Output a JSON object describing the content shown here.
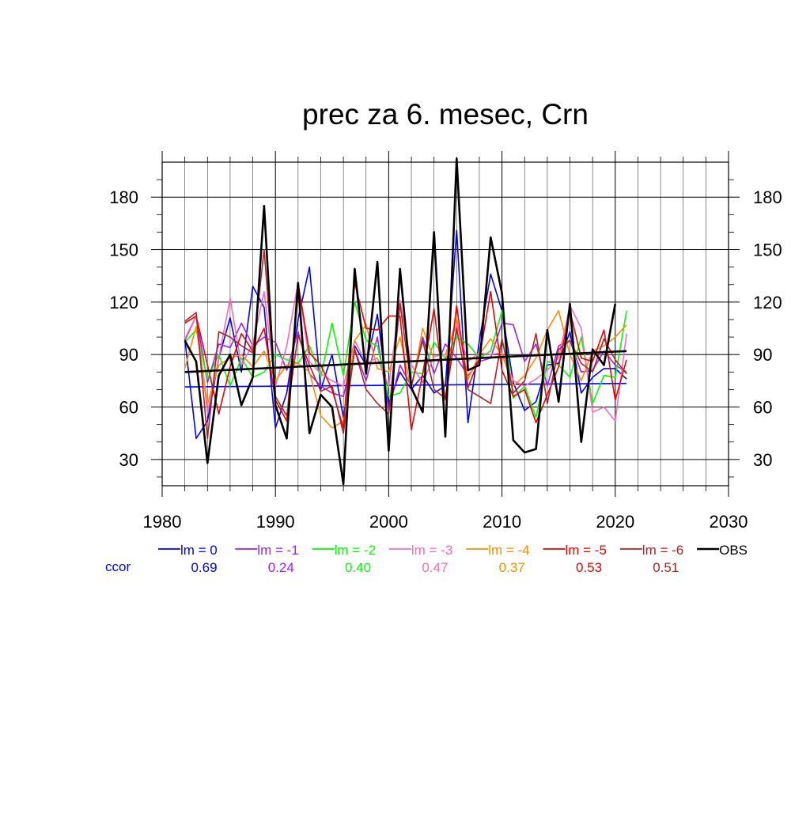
{
  "chart_data": {
    "type": "line",
    "title": "prec za 6. mesec, Crn",
    "xlabel": "",
    "ylabel": "",
    "xlim": [
      1980,
      2030
    ],
    "ylim": [
      15,
      200
    ],
    "x_ticks": [
      1980,
      1990,
      2000,
      2010,
      2020,
      2030
    ],
    "x_tick_labels": [
      "1980",
      "1990",
      "2000",
      "2010",
      "2020",
      "2030"
    ],
    "y_ticks": [
      30,
      60,
      90,
      120,
      150,
      180
    ],
    "y_tick_labels": [
      "30",
      "60",
      "90",
      "120",
      "150",
      "180"
    ],
    "grid": true,
    "legend_position": "bottom",
    "ccor_label": "ccor",
    "x": [
      1982,
      1983,
      1984,
      1985,
      1986,
      1987,
      1988,
      1989,
      1990,
      1991,
      1992,
      1993,
      1994,
      1995,
      1996,
      1997,
      1998,
      1999,
      2000,
      2001,
      2002,
      2003,
      2004,
      2005,
      2006,
      2007,
      2008,
      2009,
      2010,
      2011,
      2012,
      2013,
      2014,
      2015,
      2016,
      2017,
      2018,
      2019,
      2020,
      2021
    ],
    "series": [
      {
        "name": "lm = 0",
        "color": "#0000ff",
        "ccor": "0.69",
        "stroke_width": 1.6,
        "values": [
          99,
          42,
          52,
          88,
          111,
          80,
          129,
          117,
          48,
          68,
          110,
          140,
          70,
          90,
          54,
          95,
          84,
          113,
          62,
          80,
          70,
          78,
          68,
          72,
          161,
          51,
          98,
          136,
          115,
          74,
          58,
          63,
          84,
          85,
          103,
          68,
          77,
          82,
          82,
          76
        ],
        "trend": [
          71.5,
          73.5
        ]
      },
      {
        "name": "lm = -1",
        "color": "#a020f0",
        "ccor": "0.24",
        "stroke_width": 1.6,
        "values": [
          98,
          112,
          74,
          96,
          94,
          108,
          95,
          100,
          97,
          81,
          103,
          79,
          72,
          68,
          66,
          93,
          75,
          100,
          58,
          84,
          72,
          100,
          79,
          96,
          88,
          78,
          86,
          88,
          108,
          107,
          86,
          96,
          72,
          95,
          98,
          80,
          81,
          92,
          84,
          80
        ]
      },
      {
        "name": "lm = -2",
        "color": "#00ff00",
        "ccor": "0.40",
        "stroke_width": 1.6,
        "values": [
          97,
          104,
          76,
          90,
          72,
          88,
          77,
          80,
          90,
          87,
          85,
          95,
          77,
          108,
          78,
          120,
          98,
          95,
          66,
          68,
          80,
          79,
          97,
          88,
          100,
          96,
          88,
          92,
          115,
          65,
          72,
          54,
          86,
          84,
          77,
          100,
          62,
          78,
          77,
          115
        ]
      },
      {
        "name": "lm = -3",
        "color": "#ff69b4",
        "ccor": "0.47",
        "stroke_width": 1.6,
        "values": [
          99,
          112,
          57,
          88,
          122,
          84,
          96,
          126,
          72,
          95,
          131,
          86,
          79,
          75,
          72,
          98,
          85,
          88,
          72,
          121,
          84,
          74,
          89,
          90,
          107,
          86,
          91,
          90,
          91,
          75,
          72,
          76,
          81,
          88,
          118,
          105,
          57,
          60,
          52,
          102
        ]
      },
      {
        "name": "lm = -4",
        "color": "#ff8c00",
        "ccor": "0.37",
        "stroke_width": 1.6,
        "values": [
          82,
          106,
          62,
          84,
          88,
          90,
          83,
          92,
          75,
          84,
          85,
          80,
          55,
          48,
          52,
          98,
          107,
          82,
          80,
          100,
          70,
          105,
          87,
          87,
          111,
          76,
          90,
          99,
          90,
          72,
          78,
          88,
          104,
          115,
          90,
          75,
          92,
          95,
          100,
          107
        ]
      },
      {
        "name": "lm = -5",
        "color": "#ee0000",
        "ccor": "0.53",
        "stroke_width": 1.6,
        "values": [
          108,
          112,
          84,
          56,
          83,
          102,
          92,
          105,
          64,
          52,
          131,
          91,
          84,
          70,
          48,
          131,
          105,
          104,
          112,
          112,
          47,
          79,
          116,
          64,
          118,
          71,
          88,
          126,
          81,
          66,
          70,
          51,
          67,
          83,
          115,
          88,
          86,
          104,
          64,
          87
        ]
      },
      {
        "name": "lm = -6",
        "color": "#b22222",
        "ccor": "0.51",
        "stroke_width": 1.6,
        "values": [
          109,
          114,
          42,
          103,
          100,
          95,
          91,
          150,
          66,
          55,
          101,
          84,
          69,
          72,
          45,
          93,
          70,
          62,
          56,
          119,
          72,
          98,
          70,
          65,
          105,
          70,
          66,
          62,
          99,
          68,
          75,
          102,
          62,
          93,
          98,
          85,
          80,
          99,
          87,
          79
        ]
      },
      {
        "name": "OBS",
        "color": "#000000",
        "ccor": "",
        "stroke_width": 2.6,
        "values": [
          98,
          86,
          28,
          78,
          90,
          61,
          77,
          175,
          61,
          42,
          131,
          45,
          67,
          60,
          16,
          139,
          79,
          143,
          35,
          139,
          71,
          57,
          160,
          43,
          202,
          81,
          84,
          157,
          125,
          41,
          34,
          36,
          104,
          63,
          119,
          40,
          93,
          84,
          119,
          null
        ],
        "trend": [
          80,
          92
        ]
      }
    ]
  }
}
